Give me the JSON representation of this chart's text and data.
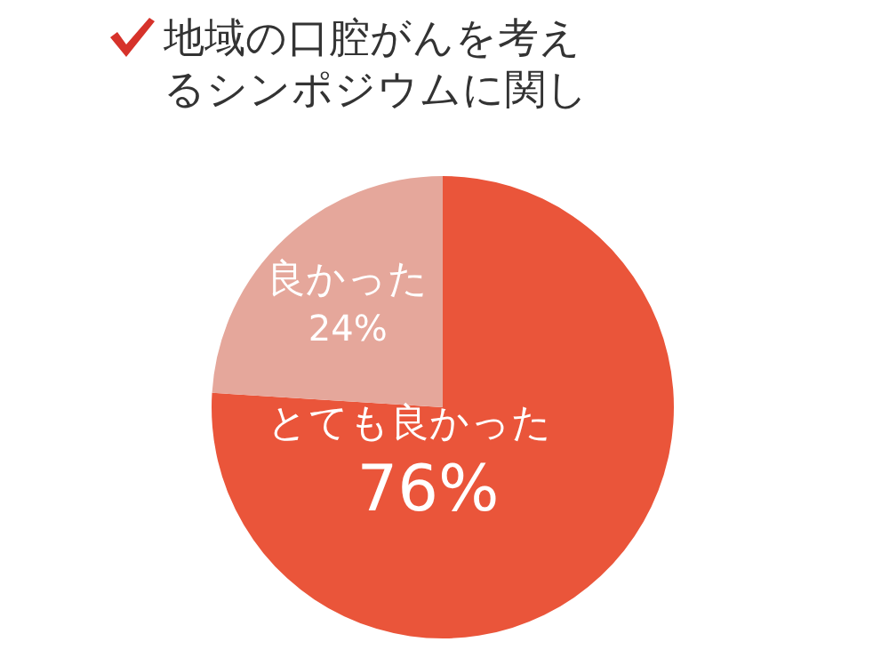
{
  "chart_data": {
    "type": "pie",
    "title": "地域の口腔がんを考えるシンポジウムに関し",
    "categories": [
      "とても良かった",
      "良かった"
    ],
    "values": [
      76,
      24
    ],
    "value_labels": [
      "76%",
      "24%"
    ],
    "colors": [
      "#ea553a",
      "#e5a79b"
    ],
    "legend": false
  }
}
